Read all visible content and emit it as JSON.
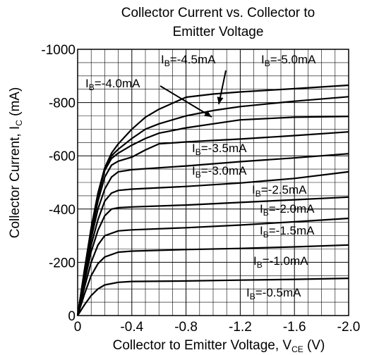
{
  "chart_data": {
    "type": "line",
    "title_line1": "Collector Current vs.  Collector to",
    "title_line2": "Emitter Voltage",
    "xlabel": {
      "main": "Collector to Emitter Voltage, V",
      "sub": "CE",
      "unit": " (V)"
    },
    "ylabel": {
      "main": "Collector Current, I",
      "sub": "C",
      "unit": " (mA)"
    },
    "xlim": [
      0,
      -2.0
    ],
    "ylim": [
      0,
      -1000
    ],
    "x_ticks": [
      {
        "value": 0,
        "label": "0"
      },
      {
        "value": -0.4,
        "label": "-0.4"
      },
      {
        "value": -0.8,
        "label": "-0.8"
      },
      {
        "value": -1.2,
        "label": "-1.2"
      },
      {
        "value": -1.6,
        "label": "-1.6"
      },
      {
        "value": -2.0,
        "label": "-2.0"
      }
    ],
    "y_ticks": [
      {
        "value": 0,
        "label": "0"
      },
      {
        "value": -200,
        "label": "-200"
      },
      {
        "value": -400,
        "label": "-400"
      },
      {
        "value": -600,
        "label": "-600"
      },
      {
        "value": -800,
        "label": "-800"
      },
      {
        "value": -1000,
        "label": "-1000"
      }
    ],
    "grid": true,
    "series": [
      {
        "name": "IB=-0.5mA",
        "label_main": "I",
        "label_sub": "B",
        "label_rest": "=-0.5mA",
        "x": [
          0,
          -0.05,
          -0.1,
          -0.15,
          -0.2,
          -0.3,
          -0.4,
          -0.8,
          -1.2,
          -1.6,
          -2.0
        ],
        "y": [
          0,
          -40,
          -75,
          -100,
          -115,
          -125,
          -128,
          -130,
          -133,
          -136,
          -140
        ]
      },
      {
        "name": "IB=-1.0mA",
        "label_main": "I",
        "label_sub": "B",
        "label_rest": "=-1.0mA",
        "x": [
          0,
          -0.05,
          -0.1,
          -0.15,
          -0.2,
          -0.3,
          -0.4,
          -0.8,
          -1.2,
          -1.6,
          -2.0
        ],
        "y": [
          0,
          -80,
          -150,
          -195,
          -220,
          -238,
          -242,
          -248,
          -252,
          -258,
          -265
        ]
      },
      {
        "name": "IB=-1.5mA",
        "label_main": "I",
        "label_sub": "B",
        "label_rest": "=-1.5mA",
        "x": [
          0,
          -0.05,
          -0.1,
          -0.15,
          -0.2,
          -0.3,
          -0.4,
          -0.8,
          -1.2,
          -1.6,
          -2.0
        ],
        "y": [
          0,
          -105,
          -200,
          -265,
          -300,
          -318,
          -322,
          -330,
          -340,
          -352,
          -365
        ]
      },
      {
        "name": "IB=-2.0mA",
        "label_main": "I",
        "label_sub": "B",
        "label_rest": "=-2.0mA",
        "x": [
          0,
          -0.05,
          -0.1,
          -0.15,
          -0.2,
          -0.25,
          -0.3,
          -0.4,
          -0.8,
          -1.2,
          -1.6,
          -2.0
        ],
        "y": [
          0,
          -125,
          -240,
          -320,
          -375,
          -400,
          -405,
          -408,
          -415,
          -425,
          -435,
          -445
        ]
      },
      {
        "name": "IB=-2.5mA",
        "label_main": "I",
        "label_sub": "B",
        "label_rest": "=-2.5mA",
        "x": [
          0,
          -0.05,
          -0.1,
          -0.15,
          -0.2,
          -0.25,
          -0.3,
          -0.4,
          -0.8,
          -1.2,
          -1.6,
          -2.0
        ],
        "y": [
          0,
          -140,
          -265,
          -360,
          -430,
          -460,
          -470,
          -475,
          -485,
          -498,
          -515,
          -540
        ]
      },
      {
        "name": "IB=-3.0mA",
        "label_main": "I",
        "label_sub": "B",
        "label_rest": "=-3.0mA",
        "x": [
          0,
          -0.05,
          -0.1,
          -0.15,
          -0.2,
          -0.25,
          -0.3,
          -0.4,
          -0.8,
          -1.2,
          -1.6,
          -2.0
        ],
        "y": [
          0,
          -150,
          -290,
          -400,
          -475,
          -520,
          -540,
          -548,
          -562,
          -578,
          -592,
          -608
        ]
      },
      {
        "name": "IB=-3.5mA",
        "label_main": "I",
        "label_sub": "B",
        "label_rest": "=-3.5mA",
        "x": [
          0,
          -0.05,
          -0.1,
          -0.15,
          -0.2,
          -0.25,
          -0.3,
          -0.4,
          -0.5,
          -0.6,
          -0.8,
          -1.2,
          -1.6,
          -2.0
        ],
        "y": [
          0,
          -160,
          -310,
          -430,
          -520,
          -565,
          -580,
          -595,
          -622,
          -645,
          -652,
          -663,
          -676,
          -690
        ]
      },
      {
        "name": "IB=-4.0mA",
        "label_main": "I",
        "label_sub": "B",
        "label_rest": "=-4.0mA",
        "x": [
          0,
          -0.05,
          -0.1,
          -0.15,
          -0.2,
          -0.25,
          -0.3,
          -0.4,
          -0.5,
          -0.6,
          -0.8,
          -1.0,
          -1.2,
          -1.6,
          -2.0
        ],
        "y": [
          0,
          -165,
          -320,
          -450,
          -545,
          -590,
          -610,
          -640,
          -665,
          -685,
          -705,
          -720,
          -735,
          -745,
          -748
        ]
      },
      {
        "name": "IB=-4.5mA",
        "label_main": "I",
        "label_sub": "B",
        "label_rest": "=-4.5mA",
        "x": [
          0,
          -0.05,
          -0.1,
          -0.15,
          -0.2,
          -0.25,
          -0.3,
          -0.4,
          -0.5,
          -0.6,
          -0.8,
          -1.0,
          -1.2,
          -1.6,
          -2.0
        ],
        "y": [
          0,
          -168,
          -325,
          -455,
          -550,
          -600,
          -625,
          -665,
          -700,
          -720,
          -750,
          -770,
          -785,
          -805,
          -822
        ]
      },
      {
        "name": "IB=-5.0mA",
        "label_main": "I",
        "label_sub": "B",
        "label_rest": "=-5.0mA",
        "x": [
          0,
          -0.05,
          -0.1,
          -0.15,
          -0.2,
          -0.25,
          -0.3,
          -0.4,
          -0.5,
          -0.6,
          -0.8,
          -1.0,
          -1.2,
          -1.6,
          -2.0
        ],
        "y": [
          0,
          -170,
          -330,
          -460,
          -555,
          -610,
          -645,
          -700,
          -745,
          -775,
          -820,
          -832,
          -840,
          -852,
          -865
        ]
      }
    ]
  }
}
